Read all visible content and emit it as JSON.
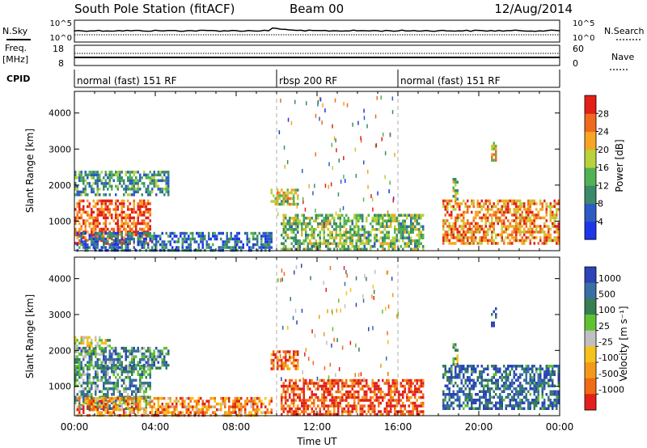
{
  "header": {
    "title": "South Pole Station (fitACF)",
    "beam": "Beam 00",
    "date": "12/Aug/2014"
  },
  "aux_panels": {
    "nsky_label": "N.Sky",
    "nsearch_label": "N.Search",
    "nsky_ticks": [
      "10^5",
      "10^0"
    ],
    "nsearch_ticks": [
      "10^5",
      "10^0"
    ],
    "freq_label_1": "Freq.",
    "freq_label_2": "[MHz]",
    "freq_ticks": [
      "18",
      "8"
    ],
    "nave_label": "Nave",
    "nave_ticks": [
      "60",
      "0"
    ],
    "cpid_label": "CPID",
    "cpid_segments": [
      {
        "label": "normal (fast) 151 RF",
        "start_h": 0,
        "end_h": 10
      },
      {
        "label": "rbsp 200 RF",
        "start_h": 10,
        "end_h": 16
      },
      {
        "label": "normal (fast) 151 RF",
        "start_h": 16,
        "end_h": 24
      }
    ]
  },
  "chart_data": [
    {
      "type": "heatmap",
      "parameter": "Power",
      "ylabel": "Slant Range [km]",
      "xlim_hours": [
        0,
        24
      ],
      "ylim_km": [
        180,
        4600
      ],
      "y_ticks": [
        1000,
        2000,
        3000,
        4000
      ],
      "colorbar_label": "Power [dB]",
      "colorbar_ticks": [
        4,
        8,
        12,
        16,
        20,
        24,
        28
      ],
      "colorbar_range": [
        0,
        32
      ],
      "colorbar_colors": [
        "#1f36e8",
        "#2d5bc4",
        "#3b8a6a",
        "#52b256",
        "#b8d23c",
        "#f6a623",
        "#ef6a1c",
        "#e31f17"
      ],
      "echo_regions": [
        {
          "t0": 0.0,
          "t1": 3.8,
          "r0": 400,
          "r1": 1600,
          "level": 0.85
        },
        {
          "t0": 0.0,
          "t1": 4.7,
          "r0": 1700,
          "r1": 2400,
          "level": 0.35
        },
        {
          "t0": 0.1,
          "t1": 9.8,
          "r0": 220,
          "r1": 700,
          "level": 0.2
        },
        {
          "t0": 9.7,
          "t1": 11.1,
          "r0": 1450,
          "r1": 1900,
          "level": 0.55
        },
        {
          "t0": 10.2,
          "t1": 17.3,
          "r0": 250,
          "r1": 1200,
          "level": 0.45
        },
        {
          "t0": 18.2,
          "t1": 24.0,
          "r0": 400,
          "r1": 1600,
          "level": 0.75
        },
        {
          "t0": 18.7,
          "t1": 19.0,
          "r0": 1600,
          "r1": 2200,
          "level": 0.5
        },
        {
          "t0": 20.6,
          "t1": 20.9,
          "r0": 2700,
          "r1": 3200,
          "level": 0.6
        }
      ]
    },
    {
      "type": "heatmap",
      "parameter": "Velocity",
      "ylabel": "Slant Range [km]",
      "xlabel": "Time UT",
      "xlim_hours": [
        0,
        24
      ],
      "ylim_km": [
        180,
        4600
      ],
      "y_ticks": [
        1000,
        2000,
        3000,
        4000
      ],
      "x_ticks": [
        "00:00",
        "04:00",
        "08:00",
        "12:00",
        "16:00",
        "20:00",
        "00:00"
      ],
      "colorbar_label": "Velocity [m s⁻¹]",
      "colorbar_ticks": [
        "1000",
        "500",
        "100",
        "25",
        "-25",
        "-100",
        "-500",
        "-1000"
      ],
      "colorbar_colors": [
        "#2c44b8",
        "#3a6fa3",
        "#357f52",
        "#5fc233",
        "#c0c0c0",
        "#f5c21b",
        "#f39a1a",
        "#ef6b15",
        "#e3201b"
      ],
      "echo_regions": [
        {
          "t0": 0.0,
          "t1": 3.8,
          "r0": 400,
          "r1": 1600,
          "level": 0.3
        },
        {
          "t0": 0.0,
          "t1": 1.8,
          "r0": 1900,
          "r1": 2400,
          "level": 0.5
        },
        {
          "t0": 0.0,
          "t1": 4.7,
          "r0": 1500,
          "r1": 2100,
          "level": 0.25
        },
        {
          "t0": 0.1,
          "t1": 9.8,
          "r0": 220,
          "r1": 700,
          "level": 0.75
        },
        {
          "t0": 9.7,
          "t1": 11.1,
          "r0": 1450,
          "r1": 2000,
          "level": 0.85
        },
        {
          "t0": 10.2,
          "t1": 17.3,
          "r0": 250,
          "r1": 1200,
          "level": 0.9
        },
        {
          "t0": 18.2,
          "t1": 24.0,
          "r0": 400,
          "r1": 1600,
          "level": 0.15
        },
        {
          "t0": 18.7,
          "t1": 19.0,
          "r0": 1600,
          "r1": 2200,
          "level": 0.4
        },
        {
          "t0": 20.6,
          "t1": 20.9,
          "r0": 2700,
          "r1": 3200,
          "level": 0.1
        }
      ]
    }
  ]
}
